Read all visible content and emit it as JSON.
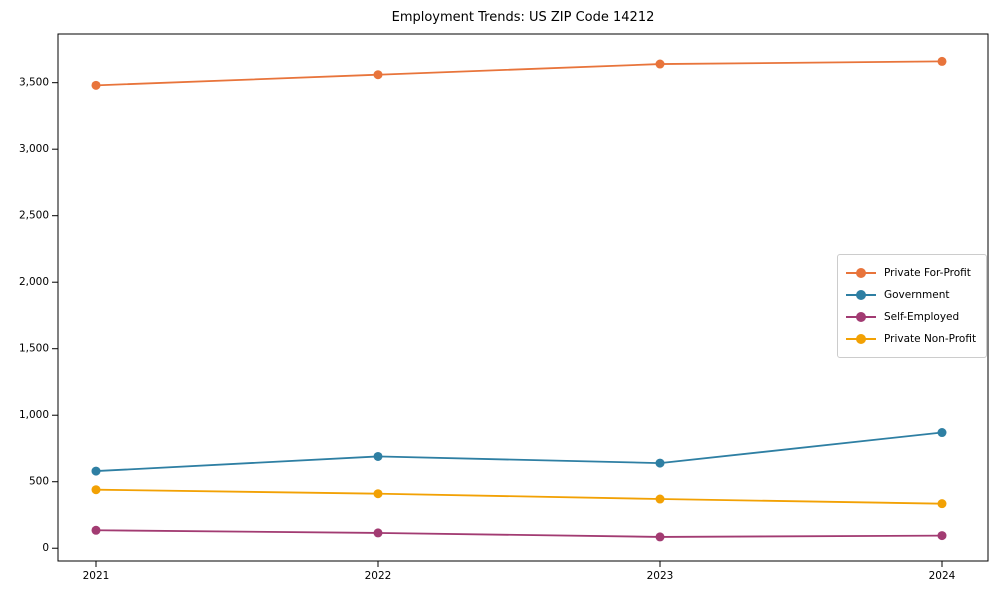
{
  "chart_data": {
    "type": "line",
    "title": "Employment Trends: US ZIP Code 14212",
    "xlabel": "",
    "ylabel": "",
    "x": [
      "2021",
      "2022",
      "2023",
      "2024"
    ],
    "series": [
      {
        "name": "Private For-Profit",
        "color": "#E8743B",
        "values": [
          3480,
          3560,
          3640,
          3660
        ]
      },
      {
        "name": "Government",
        "color": "#2E7FA3",
        "values": [
          580,
          690,
          640,
          870
        ]
      },
      {
        "name": "Self-Employed",
        "color": "#A23B72",
        "values": [
          135,
          115,
          85,
          95
        ]
      },
      {
        "name": "Private Non-Profit",
        "color": "#F2A104",
        "values": [
          440,
          410,
          370,
          335
        ]
      }
    ],
    "yticks": [
      0,
      500,
      1000,
      1500,
      2000,
      2500,
      3000,
      3500
    ],
    "ylim": [
      -96,
      3866
    ],
    "grid": false,
    "legend_position": "right-middle",
    "marker": "circle",
    "axis_color": "#000000"
  }
}
